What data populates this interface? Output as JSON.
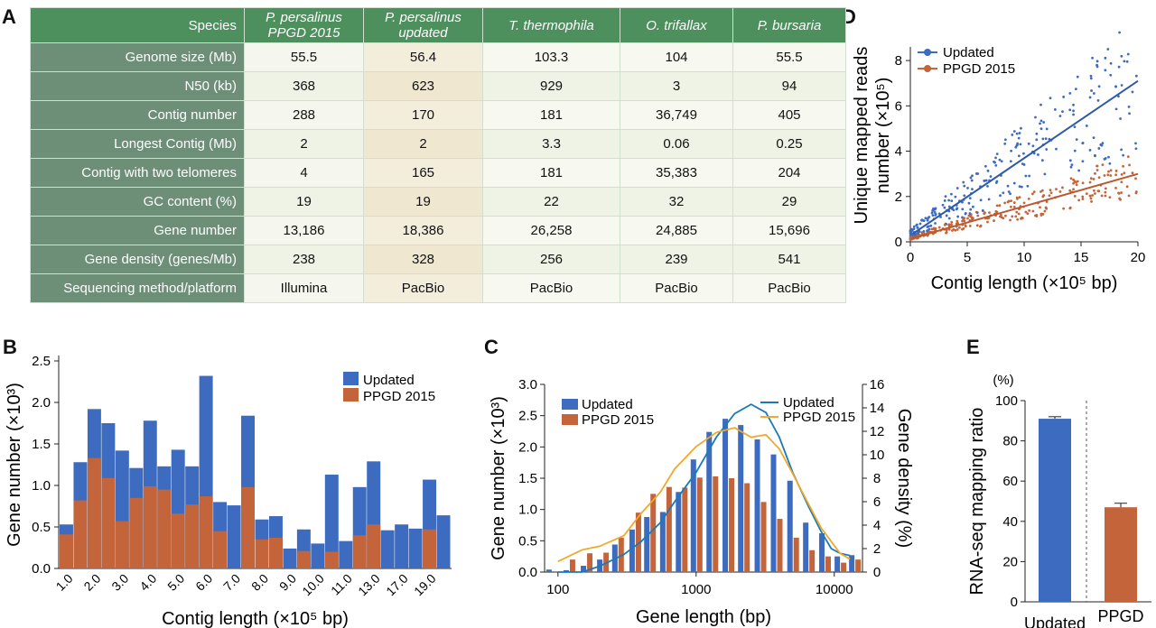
{
  "panels": {
    "A": "A",
    "B": "B",
    "C": "C",
    "D": "D",
    "E": "E"
  },
  "table": {
    "header": [
      "Species",
      "P. persalinus PPGD 2015",
      "P. persalinus updated",
      "T. thermophila",
      "O. trifallax",
      "P. bursaria"
    ],
    "header_lines": [
      [
        "Species"
      ],
      [
        "P. persalinus",
        "PPGD 2015"
      ],
      [
        "P. persalinus",
        "updated"
      ],
      [
        "T. thermophila"
      ],
      [
        "O. trifallax"
      ],
      [
        "P. bursaria"
      ]
    ],
    "rows": [
      {
        "label": "Genome size (Mb)",
        "values": [
          "55.5",
          "56.4",
          "103.3",
          "104",
          "55.5"
        ]
      },
      {
        "label": "N50 (kb)",
        "values": [
          "368",
          "623",
          "929",
          "3",
          "94"
        ]
      },
      {
        "label": "Contig number",
        "values": [
          "288",
          "170",
          "181",
          "36,749",
          "405"
        ]
      },
      {
        "label": "Longest Contig (Mb)",
        "values": [
          "2",
          "2",
          "3.3",
          "0.06",
          "0.25"
        ]
      },
      {
        "label": "Contig with two telomeres",
        "values": [
          "4",
          "165",
          "181",
          "35,383",
          "204"
        ]
      },
      {
        "label": "GC content (%)",
        "values": [
          "19",
          "19",
          "22",
          "32",
          "29"
        ]
      },
      {
        "label": "Gene number",
        "values": [
          "13,186",
          "18,386",
          "26,258",
          "24,885",
          "15,696"
        ]
      },
      {
        "label": "Gene density (genes/Mb)",
        "values": [
          "238",
          "328",
          "256",
          "239",
          "541"
        ]
      },
      {
        "label": "Sequencing method/platform",
        "values": [
          "Illumina",
          "PacBio",
          "PacBio",
          "PacBio",
          "PacBio"
        ]
      }
    ]
  },
  "colors": {
    "updated": "#3d6bbf",
    "ppgd": "#c4643a",
    "line_updated": "#1a7ab8",
    "line_ppgd": "#f0a92a",
    "table_header": "#4e8f5e"
  },
  "chart_data": [
    {
      "id": "B",
      "type": "bar",
      "xlabel": "Contig length (×10⁵ bp)",
      "ylabel": "Gene number (×10³)",
      "ylim": [
        0,
        2.5
      ],
      "yticks": [
        "0.0",
        "0.5",
        "1.0",
        "1.5",
        "2.0",
        "2.5"
      ],
      "tick_labels": [
        "1.0",
        "2.0",
        "3.0",
        "4.0",
        "5.0",
        "6.0",
        "7.0",
        "8.0",
        "9.0",
        "10.0",
        "11.0",
        "13.0",
        "17.0",
        "19.0"
      ],
      "legend": "top-right",
      "series": [
        {
          "name": "Updated",
          "values": [
            0.53,
            1.28,
            1.92,
            1.75,
            1.42,
            1.21,
            1.78,
            1.23,
            1.43,
            1.23,
            2.32,
            0.8,
            0.76,
            1.84,
            0.59,
            0.63,
            0.24,
            0.47,
            0.3,
            1.13,
            0.33,
            0.98,
            1.29,
            0.46,
            0.53,
            0.48,
            1.07,
            0.64
          ]
        },
        {
          "name": "PPGD 2015",
          "values": [
            0.41,
            0.82,
            1.33,
            1.09,
            0.57,
            0.85,
            0.99,
            0.95,
            0.66,
            0.77,
            0.87,
            0.45,
            0,
            0.98,
            0.35,
            0.37,
            0,
            0.21,
            0,
            0.2,
            0,
            0.4,
            0.53,
            0,
            0,
            0,
            0.47,
            0
          ]
        }
      ]
    },
    {
      "id": "C",
      "type": "bar",
      "xlabel": "Gene length (bp)",
      "ylabel": "Gene number (×10³)",
      "ylabel_right": "Gene density (%)",
      "ylim": [
        0,
        3.0
      ],
      "ylim_right": [
        0,
        16
      ],
      "yticks": [
        "0.0",
        "0.5",
        "1.0",
        "1.5",
        "2.0",
        "2.5",
        "3.0"
      ],
      "yticks_right": [
        "0",
        "2",
        "4",
        "6",
        "8",
        "10",
        "12",
        "14",
        "16"
      ],
      "xticks": [
        "100",
        "1000",
        "10000"
      ],
      "xscale": "log",
      "x": [
        90,
        120,
        160,
        210,
        270,
        360,
        460,
        600,
        780,
        1000,
        1300,
        1700,
        2200,
        2900,
        3800,
        5000,
        6500,
        8500,
        11000,
        14000
      ],
      "series": [
        {
          "name": "Updated",
          "values": [
            0.04,
            0.03,
            0.1,
            0.2,
            0.44,
            0.68,
            0.88,
            0.96,
            1.28,
            1.8,
            2.24,
            2.45,
            2.35,
            2.12,
            1.88,
            1.46,
            0.79,
            0.62,
            0.25,
            0.27
          ]
        },
        {
          "name": "PPGD 2015",
          "values": [
            0,
            0.2,
            0.3,
            0.31,
            0.55,
            0.95,
            1.25,
            1.36,
            1.35,
            1.51,
            1.53,
            1.5,
            1.42,
            1.12,
            0.85,
            0.55,
            0.35,
            0.25,
            0.15,
            0.2
          ]
        }
      ],
      "density_x": [
        100,
        150,
        200,
        300,
        400,
        550,
        700,
        1000,
        1400,
        1900,
        2500,
        3200,
        4000,
        5000,
        6500,
        8000,
        9500,
        11000,
        13000
      ],
      "density_series": [
        {
          "name": "Updated",
          "values": [
            0,
            0,
            0.5,
            1.5,
            2.6,
            4.2,
            6,
            8.5,
            11.5,
            13.5,
            14.3,
            13.6,
            11.5,
            8.5,
            5.6,
            3.5,
            2,
            1.6,
            1.4
          ]
        },
        {
          "name": "PPGD 2015",
          "values": [
            0.9,
            1.9,
            2.2,
            3.1,
            5,
            6.8,
            8.8,
            10.7,
            11.9,
            12.3,
            11.5,
            11.7,
            10.5,
            8.4,
            5.8,
            3.8,
            2.6,
            1.6,
            1.1
          ]
        }
      ],
      "legend": "top"
    },
    {
      "id": "D",
      "type": "scatter",
      "xlabel": "Contig length (×10⁵ bp)",
      "ylabel": "Unique mapped reads number (×10⁵)",
      "ylabel_lines": [
        "Unique mapped reads",
        "number (×10⁵)"
      ],
      "xlim": [
        0,
        20
      ],
      "ylim": [
        0,
        8
      ],
      "xticks": [
        "0",
        "5",
        "10",
        "15",
        "20"
      ],
      "yticks": [
        "0",
        "2",
        "4",
        "6",
        "8"
      ],
      "legend": "top-left",
      "series": [
        {
          "name": "Updated",
          "fit": [
            0.2,
            0.35,
            7.1
          ]
        },
        {
          "name": "PPGD 2015",
          "fit": [
            0.1,
            0.15,
            3.0
          ]
        }
      ]
    },
    {
      "id": "E",
      "type": "bar",
      "ylabel": "RNA-seq mapping ratio",
      "unit": "(%)",
      "ylim": [
        0,
        100
      ],
      "yticks": [
        "0",
        "20",
        "40",
        "60",
        "80",
        "100"
      ],
      "categories": [
        "Updated",
        "PPGD 2015"
      ],
      "category_lines": [
        [
          "Updated"
        ],
        [
          "PPGD",
          "2015"
        ]
      ],
      "values": [
        91,
        47
      ],
      "errors": [
        1,
        2
      ]
    }
  ]
}
